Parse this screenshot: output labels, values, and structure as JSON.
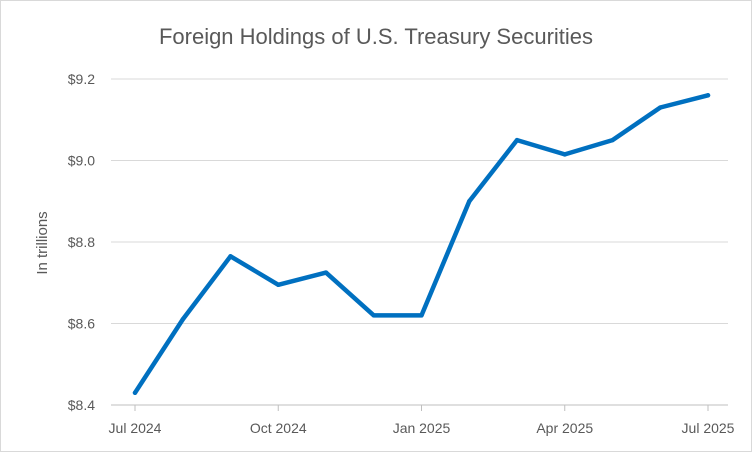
{
  "chart_data": {
    "type": "line",
    "title": "Foreign Holdings of U.S. Treasury Securities",
    "ylabel": "In trillions",
    "xlabel": "",
    "ylim": [
      8.4,
      9.2
    ],
    "yticks": [
      8.4,
      8.6,
      8.8,
      9.0,
      9.2
    ],
    "ytick_labels": [
      "$8.4",
      "$8.6",
      "$8.8",
      "$9.0",
      "$9.2"
    ],
    "x": [
      "2024-07",
      "2024-08",
      "2024-09",
      "2024-10",
      "2024-11",
      "2024-12",
      "2025-01",
      "2025-02",
      "2025-03",
      "2025-04",
      "2025-05",
      "2025-06",
      "2025-07"
    ],
    "xtick_labels": [
      "Jul 2024",
      "Oct 2024",
      "Jan 2025",
      "Apr 2025",
      "Jul 2025"
    ],
    "xtick_positions": [
      "2024-07",
      "2024-10",
      "2025-01",
      "2025-04",
      "2025-07"
    ],
    "series": [
      {
        "values": [
          8.43,
          8.61,
          8.765,
          8.695,
          8.725,
          8.62,
          8.62,
          8.9,
          9.05,
          9.015,
          9.05,
          9.13,
          9.16
        ]
      }
    ],
    "grid": "horizontal",
    "legend": "none",
    "colors": {
      "line": "#0070c0",
      "grid": "#d9d9d9",
      "text": "#595959"
    }
  }
}
